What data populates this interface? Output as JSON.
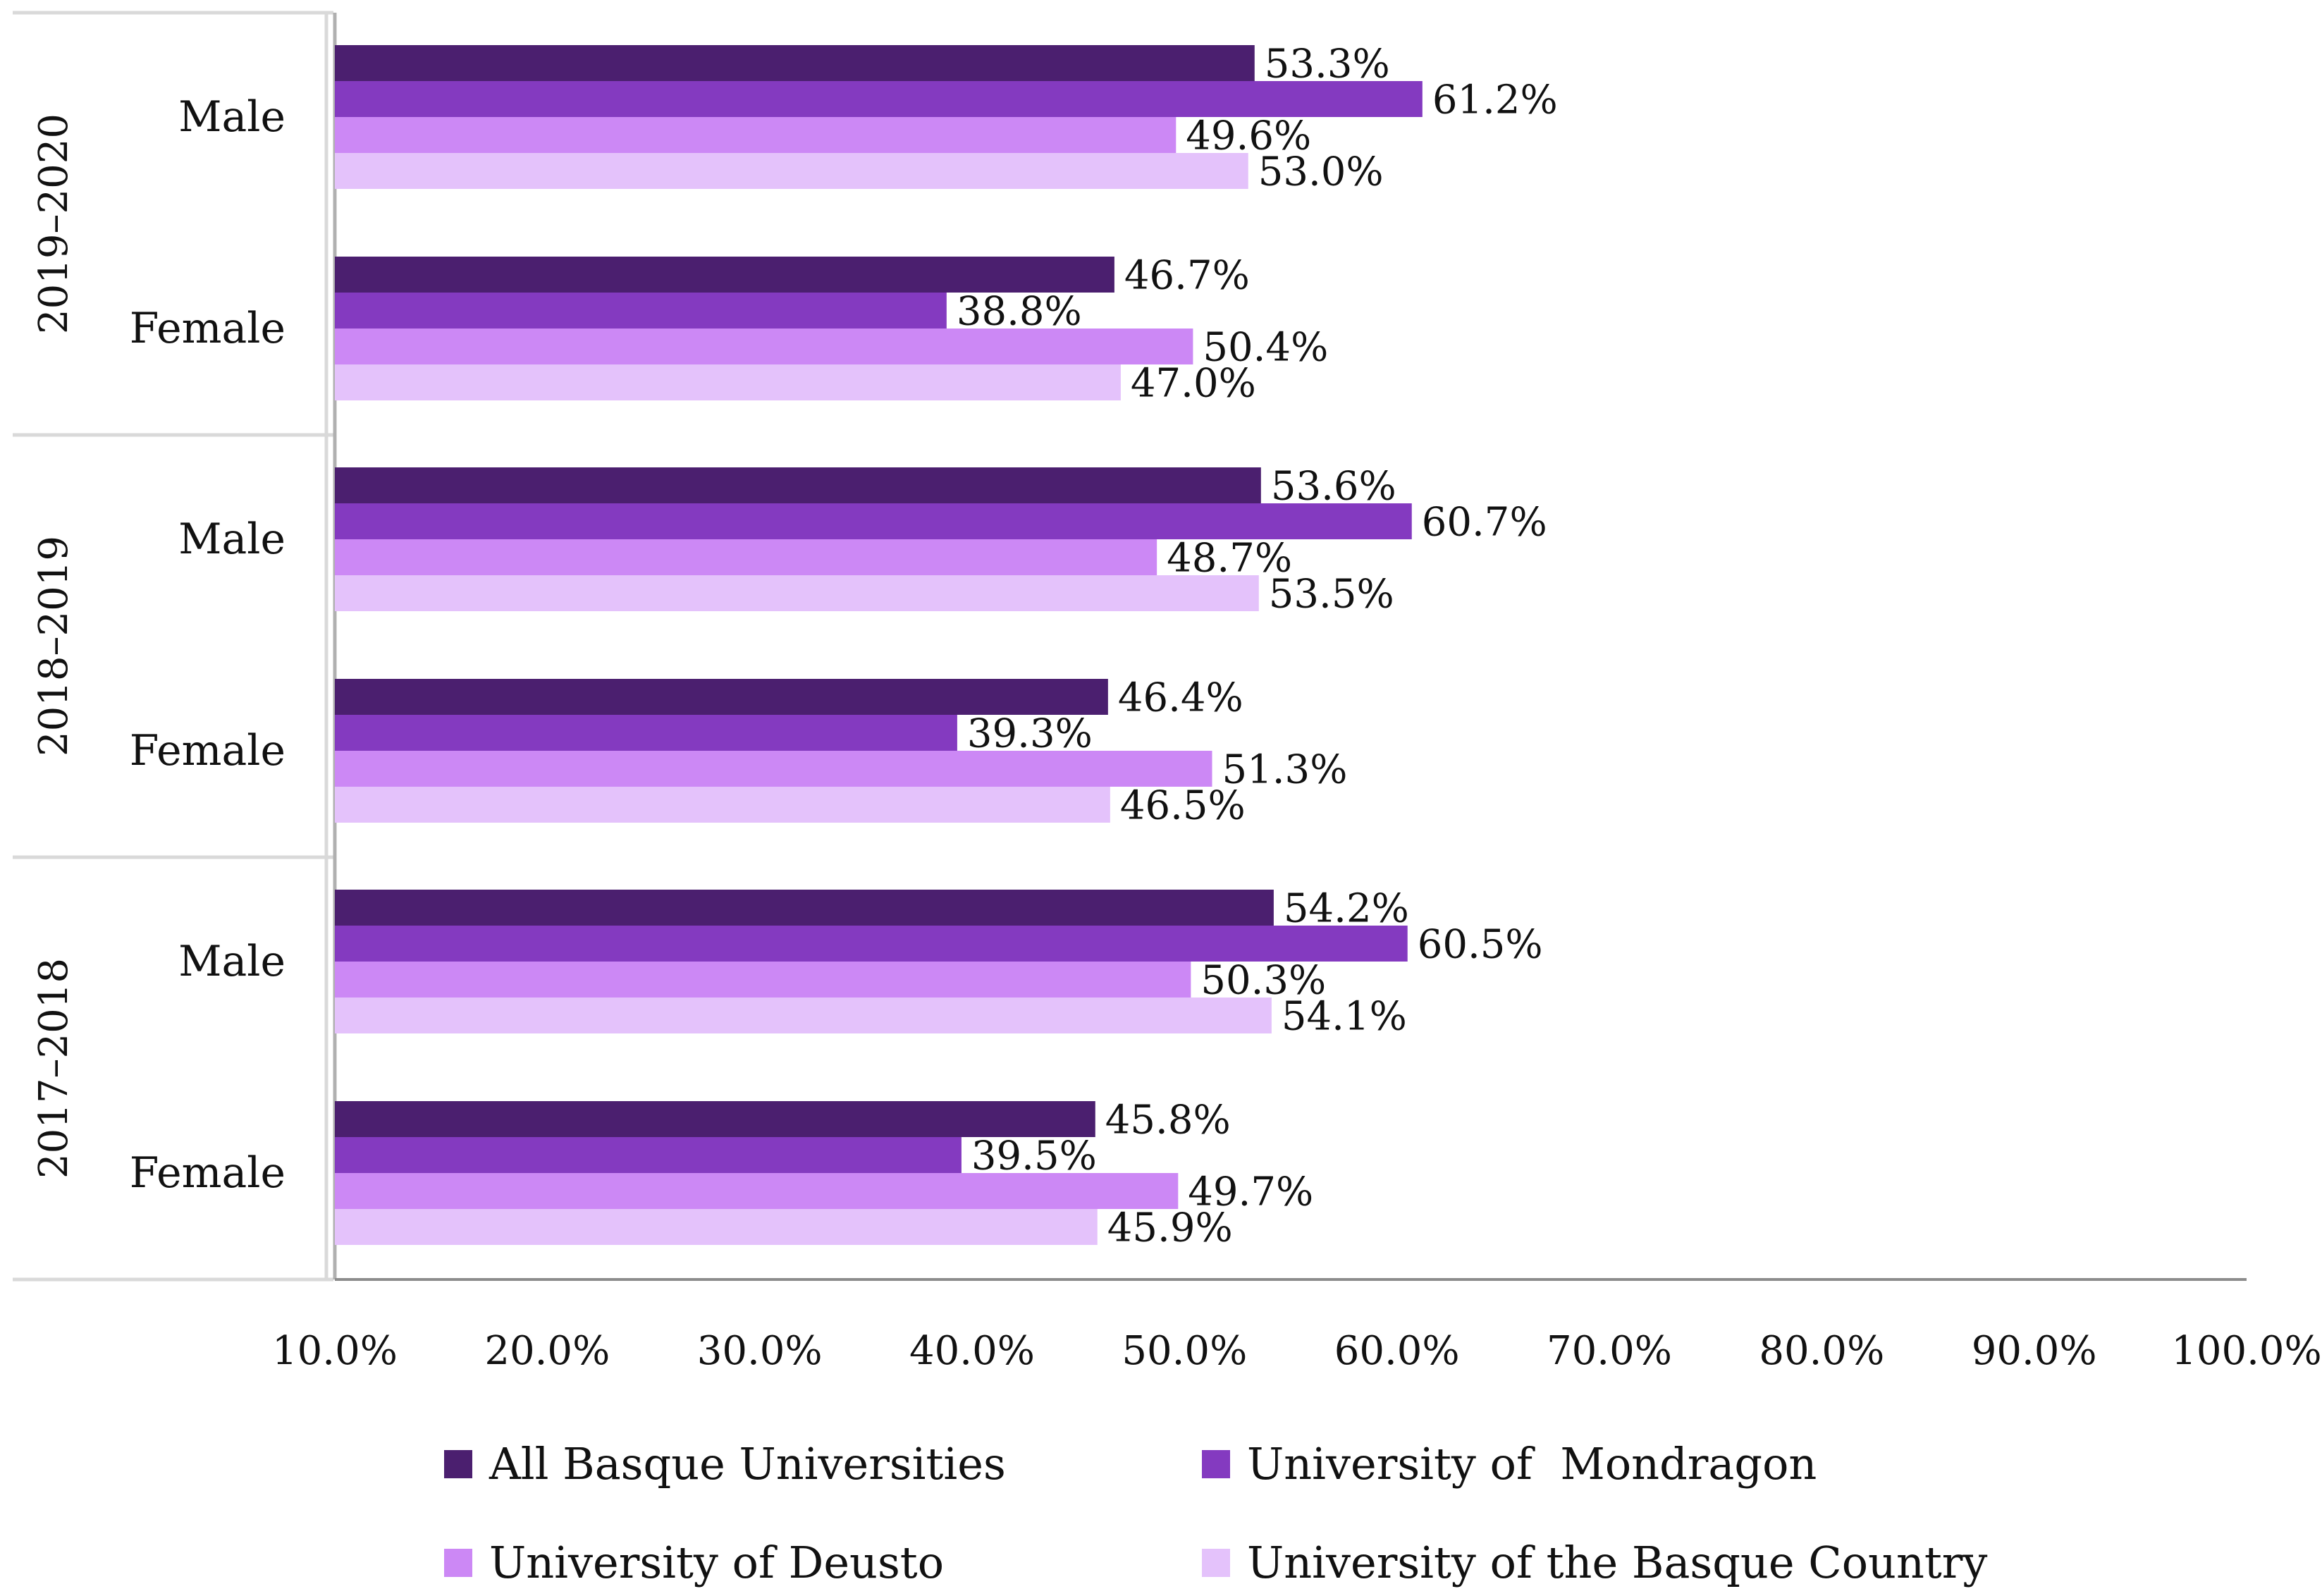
{
  "chart_data": {
    "type": "bar",
    "orientation": "horizontal",
    "title": "",
    "xlabel": "",
    "ylabel": "",
    "xlim": [
      10.0,
      100.0
    ],
    "x_tick_labels": [
      "10.0%",
      "20.0%",
      "30.0%",
      "40.0%",
      "50.0%",
      "60.0%",
      "70.0%",
      "80.0%",
      "90.0%",
      "100.0%"
    ],
    "groups": [
      {
        "year": "2019–2020",
        "categories": [
          "Male",
          "Female"
        ]
      },
      {
        "year": "2018–2019",
        "categories": [
          "Male",
          "Female"
        ]
      },
      {
        "year": "2017–2018",
        "categories": [
          "Male",
          "Female"
        ]
      }
    ],
    "series": [
      {
        "name": "All Basque Universities",
        "color": "#4b1f6f",
        "values": [
          53.3,
          46.7,
          53.6,
          46.4,
          54.2,
          45.8
        ],
        "labels": [
          "53.3%",
          "46.7%",
          "53.6%",
          "46.4%",
          "54.2%",
          "45.8%"
        ]
      },
      {
        "name": "University of  Mondragon",
        "color": "#843ac0",
        "values": [
          61.2,
          38.8,
          60.7,
          39.3,
          60.5,
          39.5
        ],
        "labels": [
          "61.2%",
          "38.8%",
          "60.7%",
          "39.3%",
          "60.5%",
          "39.5%"
        ]
      },
      {
        "name": "University of Deusto",
        "color": "#cc88f5",
        "values": [
          49.6,
          50.4,
          48.7,
          51.3,
          50.3,
          49.7
        ],
        "labels": [
          "49.6%",
          "50.4%",
          "48.7%",
          "51.3%",
          "50.3%",
          "49.7%"
        ]
      },
      {
        "name": "University of the Basque Country",
        "color": "#e4c2fb",
        "values": [
          53.0,
          47.0,
          53.5,
          46.5,
          54.1,
          45.9
        ],
        "labels": [
          "53.0%",
          "47.0%",
          "53.5%",
          "46.5%",
          "54.1%",
          "45.9%"
        ]
      }
    ],
    "legend_position": "bottom",
    "grid": false
  }
}
